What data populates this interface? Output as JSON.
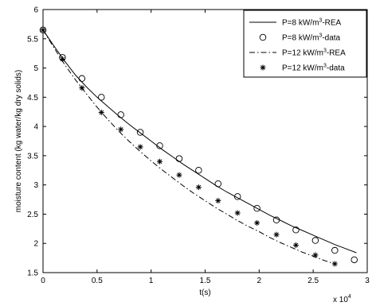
{
  "chart_data": {
    "type": "line",
    "title": "",
    "xlabel": "t(s)",
    "ylabel": "moisture content (kg water/kg dry solids)",
    "x_multiplier_label": "x 10",
    "x_multiplier_exponent": "4",
    "xlim": [
      0,
      3
    ],
    "ylim": [
      1.5,
      6
    ],
    "xticks": [
      "0",
      "0.5",
      "1",
      "1.5",
      "2",
      "2.5",
      "3"
    ],
    "yticks": [
      "1.5",
      "2",
      "2.5",
      "3",
      "3.5",
      "4",
      "4.5",
      "5",
      "5.5",
      "6"
    ],
    "grid": false,
    "legend_position": "top-right",
    "series": [
      {
        "name_prefix": "P=8 kW/m",
        "name_sup": "3",
        "name_suffix": "-REA",
        "style": "solid",
        "x": [
          0,
          0.1,
          0.2,
          0.3,
          0.4,
          0.5,
          0.6,
          0.7,
          0.8,
          0.9,
          1.0,
          1.1,
          1.2,
          1.3,
          1.4,
          1.5,
          1.6,
          1.7,
          1.8,
          1.9,
          2.0,
          2.1,
          2.2,
          2.3,
          2.4,
          2.5,
          2.6,
          2.7,
          2.8,
          2.9
        ],
        "y": [
          5.65,
          5.38,
          5.12,
          4.88,
          4.68,
          4.5,
          4.34,
          4.18,
          4.03,
          3.89,
          3.75,
          3.61,
          3.48,
          3.35,
          3.23,
          3.11,
          2.99,
          2.88,
          2.78,
          2.68,
          2.58,
          2.48,
          2.39,
          2.3,
          2.22,
          2.14,
          2.06,
          1.98,
          1.91,
          1.84
        ]
      },
      {
        "name_prefix": "P=8 kW/m",
        "name_sup": "3",
        "name_suffix": "-data",
        "style": "circle",
        "x": [
          0,
          0.18,
          0.36,
          0.54,
          0.72,
          0.9,
          1.08,
          1.26,
          1.44,
          1.62,
          1.8,
          1.98,
          2.16,
          2.34,
          2.52,
          2.7,
          2.88
        ],
        "y": [
          5.65,
          5.18,
          4.82,
          4.5,
          4.2,
          3.9,
          3.67,
          3.45,
          3.25,
          3.02,
          2.8,
          2.6,
          2.4,
          2.23,
          2.05,
          1.88,
          1.72
        ]
      },
      {
        "name_prefix": "P=12 kW/m",
        "name_sup": "3",
        "name_suffix": "-REA",
        "style": "dashdot",
        "x": [
          0,
          0.1,
          0.2,
          0.3,
          0.4,
          0.5,
          0.6,
          0.7,
          0.8,
          0.9,
          1.0,
          1.1,
          1.2,
          1.3,
          1.4,
          1.5,
          1.6,
          1.7,
          1.8,
          1.9,
          2.0,
          2.1,
          2.2,
          2.3,
          2.4,
          2.5,
          2.6,
          2.7
        ],
        "y": [
          5.65,
          5.35,
          5.06,
          4.8,
          4.56,
          4.33,
          4.12,
          3.92,
          3.74,
          3.57,
          3.41,
          3.26,
          3.12,
          2.98,
          2.85,
          2.73,
          2.61,
          2.5,
          2.39,
          2.29,
          2.2,
          2.1,
          2.01,
          1.93,
          1.85,
          1.78,
          1.71,
          1.65
        ]
      },
      {
        "name_prefix": "P=12 kW/m",
        "name_sup": "3",
        "name_suffix": "-data",
        "style": "star",
        "x": [
          0,
          0.18,
          0.36,
          0.54,
          0.72,
          0.9,
          1.08,
          1.26,
          1.44,
          1.62,
          1.8,
          1.98,
          2.16,
          2.34,
          2.52,
          2.7
        ],
        "y": [
          5.65,
          5.15,
          4.66,
          4.24,
          3.95,
          3.65,
          3.4,
          3.17,
          2.96,
          2.73,
          2.52,
          2.35,
          2.15,
          1.97,
          1.8,
          1.65
        ]
      }
    ]
  }
}
